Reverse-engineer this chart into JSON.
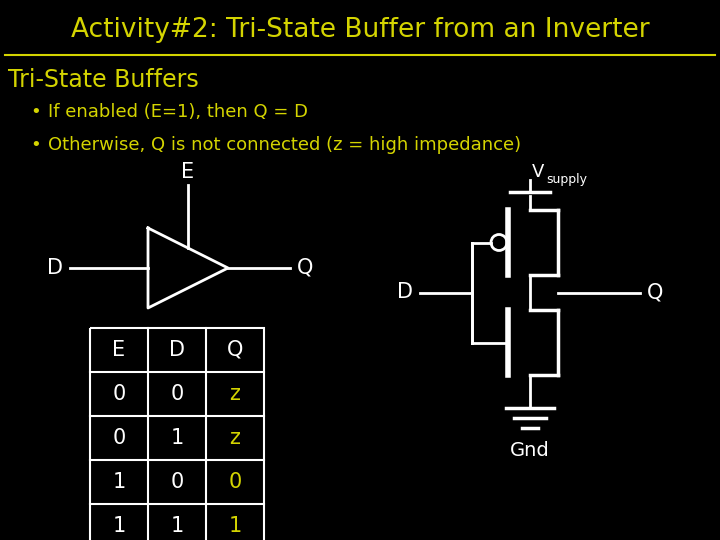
{
  "bg_color": "#000000",
  "title": "Activity#2: Tri-State Buffer from an Inverter",
  "title_color": "#d4d400",
  "title_fontsize": 19,
  "section_title": "Tri-State Buffers",
  "section_color": "#d4d400",
  "section_fontsize": 17,
  "bullet1": "If enabled (E=1), then Q = D",
  "bullet2": "Otherwise, Q is not connected (z = high impedance)",
  "bullet_color": "#d4d400",
  "bullet_fontsize": 13,
  "table_headers": [
    "E",
    "D",
    "Q"
  ],
  "table_rows": [
    [
      "0",
      "0",
      "z"
    ],
    [
      "0",
      "1",
      "z"
    ],
    [
      "1",
      "0",
      "0"
    ],
    [
      "1",
      "1",
      "1"
    ]
  ],
  "table_highlight_col": 2,
  "table_highlight_color": "#d4d400",
  "table_normal_color": "#ffffff",
  "line_color": "#ffffff",
  "divider_color": "#d4d400"
}
